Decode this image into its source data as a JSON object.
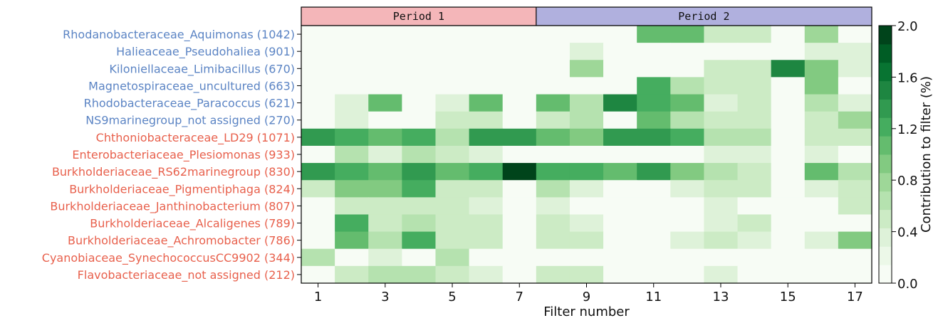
{
  "chart_data": {
    "type": "heatmap",
    "title": "",
    "xlabel": "Filter number",
    "ylabel": "",
    "x": [
      1,
      2,
      3,
      4,
      5,
      6,
      7,
      8,
      9,
      10,
      11,
      12,
      13,
      14,
      15,
      16,
      17
    ],
    "x_tick_labels": [
      "1",
      "3",
      "5",
      "7",
      "9",
      "11",
      "13",
      "15",
      "17"
    ],
    "periods": [
      {
        "label": "Period 1",
        "from": 1,
        "to": 7,
        "color": "#f4b6b9"
      },
      {
        "label": "Period 2",
        "from": 8,
        "to": 17,
        "color": "#b0b0de"
      }
    ],
    "rows": [
      {
        "label": "Rhodanobacteraceae_Aquimonas (1042)",
        "group": "blue"
      },
      {
        "label": "Halieaceae_Pseudohaliea (901)",
        "group": "blue"
      },
      {
        "label": "Kiloniellaceae_Limibacillus (670)",
        "group": "blue"
      },
      {
        "label": "Magnetospiraceae_uncultured (663)",
        "group": "blue"
      },
      {
        "label": "Rhodobacteraceae_Paracoccus (621)",
        "group": "blue"
      },
      {
        "label": "NS9marinegroup_not assigned (270)",
        "group": "blue"
      },
      {
        "label": "Chthoniobacteraceae_LD29 (1071)",
        "group": "red"
      },
      {
        "label": "Enterobacteriaceae_Plesiomonas (933)",
        "group": "red"
      },
      {
        "label": "Burkholderiaceae_RS62marinegroup (830)",
        "group": "red"
      },
      {
        "label": "Burkholderiaceae_Pigmentiphaga (824)",
        "group": "red"
      },
      {
        "label": "Burkholderiaceae_Janthinobacterium (807)",
        "group": "red"
      },
      {
        "label": "Burkholderiaceae_Alcaligenes (789)",
        "group": "red"
      },
      {
        "label": "Burkholderiaceae_Achromobacter (786)",
        "group": "red"
      },
      {
        "label": "Cyanobiaceae_SynechococcusCC9902 (344)",
        "group": "red"
      },
      {
        "label": "Flavobacteriaceae_not assigned (212)",
        "group": "red"
      }
    ],
    "values": [
      [
        0.1,
        0.1,
        0.1,
        0.1,
        0.1,
        0.1,
        0.1,
        0.1,
        0.1,
        0.1,
        1.0,
        1.0,
        0.5,
        0.5,
        0.1,
        0.8,
        0.1
      ],
      [
        0.1,
        0.1,
        0.1,
        0.1,
        0.1,
        0.1,
        0.1,
        0.1,
        0.3,
        0.1,
        0.1,
        0.1,
        0.1,
        0.1,
        0.1,
        0.3,
        0.3
      ],
      [
        0.1,
        0.1,
        0.1,
        0.1,
        0.1,
        0.1,
        0.1,
        0.1,
        0.8,
        0.1,
        0.1,
        0.1,
        0.5,
        0.5,
        1.5,
        0.9,
        0.3
      ],
      [
        0.1,
        0.1,
        0.1,
        0.1,
        0.1,
        0.1,
        0.1,
        0.1,
        0.1,
        0.1,
        1.2,
        0.7,
        0.5,
        0.5,
        0.1,
        0.9,
        0.1
      ],
      [
        0.1,
        0.3,
        1.0,
        0.1,
        0.3,
        1.0,
        0.1,
        1.0,
        0.7,
        1.5,
        1.2,
        1.0,
        0.3,
        0.5,
        0.1,
        0.7,
        0.3
      ],
      [
        0.1,
        0.3,
        0.1,
        0.1,
        0.5,
        0.5,
        0.1,
        0.5,
        0.7,
        0.1,
        1.0,
        0.7,
        0.5,
        0.5,
        0.1,
        0.5,
        0.8
      ],
      [
        1.4,
        1.2,
        1.0,
        1.2,
        0.7,
        1.4,
        1.4,
        1.0,
        0.9,
        1.4,
        1.4,
        1.2,
        0.7,
        0.7,
        0.1,
        0.5,
        0.5
      ],
      [
        0.1,
        0.7,
        0.3,
        0.7,
        0.5,
        0.3,
        0.1,
        0.1,
        0.1,
        0.1,
        0.1,
        0.1,
        0.3,
        0.3,
        0.1,
        0.3,
        0.1
      ],
      [
        1.4,
        1.2,
        1.0,
        1.4,
        1.0,
        1.2,
        2.0,
        1.2,
        1.2,
        1.0,
        1.4,
        0.9,
        0.7,
        0.5,
        0.1,
        1.0,
        0.7
      ],
      [
        0.5,
        0.9,
        0.9,
        1.2,
        0.5,
        0.5,
        0.1,
        0.7,
        0.3,
        0.1,
        0.1,
        0.3,
        0.5,
        0.5,
        0.1,
        0.3,
        0.5
      ],
      [
        0.1,
        0.5,
        0.5,
        0.5,
        0.5,
        0.3,
        0.1,
        0.3,
        0.1,
        0.1,
        0.1,
        0.1,
        0.3,
        0.1,
        0.1,
        0.1,
        0.5
      ],
      [
        0.1,
        1.2,
        0.5,
        0.7,
        0.5,
        0.5,
        0.1,
        0.5,
        0.3,
        0.1,
        0.1,
        0.1,
        0.3,
        0.5,
        0.1,
        0.1,
        0.1
      ],
      [
        0.1,
        1.0,
        0.7,
        1.2,
        0.5,
        0.5,
        0.1,
        0.5,
        0.5,
        0.1,
        0.1,
        0.3,
        0.5,
        0.3,
        0.1,
        0.3,
        0.9
      ],
      [
        0.7,
        0.1,
        0.3,
        0.1,
        0.7,
        0.1,
        0.1,
        0.1,
        0.1,
        0.1,
        0.1,
        0.1,
        0.1,
        0.1,
        0.1,
        0.1,
        0.1
      ],
      [
        0.1,
        0.5,
        0.7,
        0.7,
        0.5,
        0.3,
        0.1,
        0.5,
        0.5,
        0.1,
        0.1,
        0.1,
        0.3,
        0.1,
        0.1,
        0.1,
        0.1
      ]
    ],
    "colorbar": {
      "label": "Contribution to filter (%)",
      "min": 0.0,
      "max": 2.0,
      "bins": 14,
      "ticks": [
        "0.0",
        "0.4",
        "0.8",
        "1.2",
        "1.6",
        "2.0"
      ],
      "colors": [
        "#f7fcf5",
        "#e5f5e0",
        "#c7e9c0",
        "#a1d99b",
        "#74c476",
        "#41ab5d",
        "#238b45",
        "#006d2c",
        "#00441b"
      ]
    },
    "label_colors": {
      "blue": "#5b84c4",
      "red": "#e8604c"
    },
    "grid": false
  }
}
